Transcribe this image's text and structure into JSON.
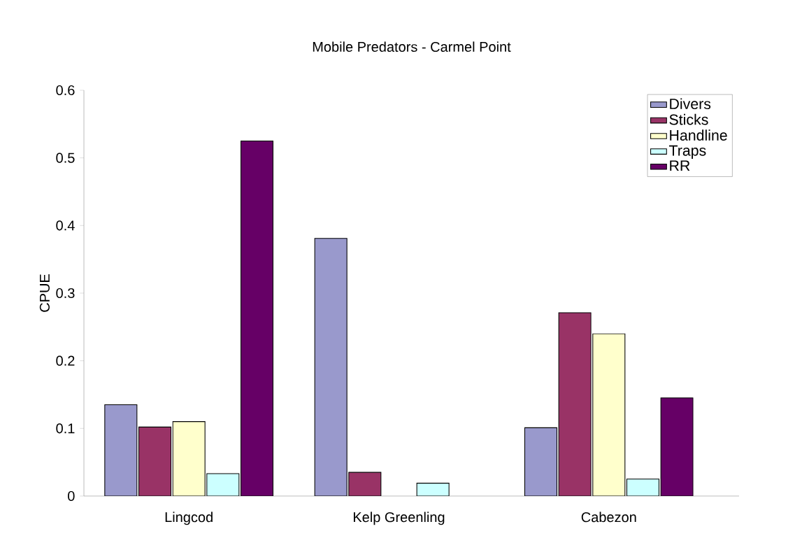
{
  "chart_data": {
    "type": "bar",
    "title": "Mobile Predators - Carmel Point",
    "ylabel": "CPUE",
    "categories": [
      "Lingcod",
      "Kelp Greenling",
      "Cabezon"
    ],
    "series": [
      {
        "name": "Divers",
        "color": "#9999cc",
        "values": [
          0.135,
          0.381,
          0.101
        ]
      },
      {
        "name": "Sticks",
        "color": "#993366",
        "values": [
          0.102,
          0.035,
          0.271
        ]
      },
      {
        "name": "Handline",
        "color": "#ffffcc",
        "values": [
          0.11,
          null,
          0.24
        ]
      },
      {
        "name": "Traps",
        "color": "#ccffff",
        "values": [
          0.033,
          0.019,
          0.025
        ]
      },
      {
        "name": "RR",
        "color": "#660066",
        "values": [
          0.525,
          null,
          0.145
        ]
      }
    ],
    "ylim": [
      0,
      0.6
    ],
    "yticks": [
      0,
      0.1,
      0.2,
      0.3,
      0.4,
      0.5,
      0.6
    ],
    "grid": false,
    "legend": "top right"
  }
}
